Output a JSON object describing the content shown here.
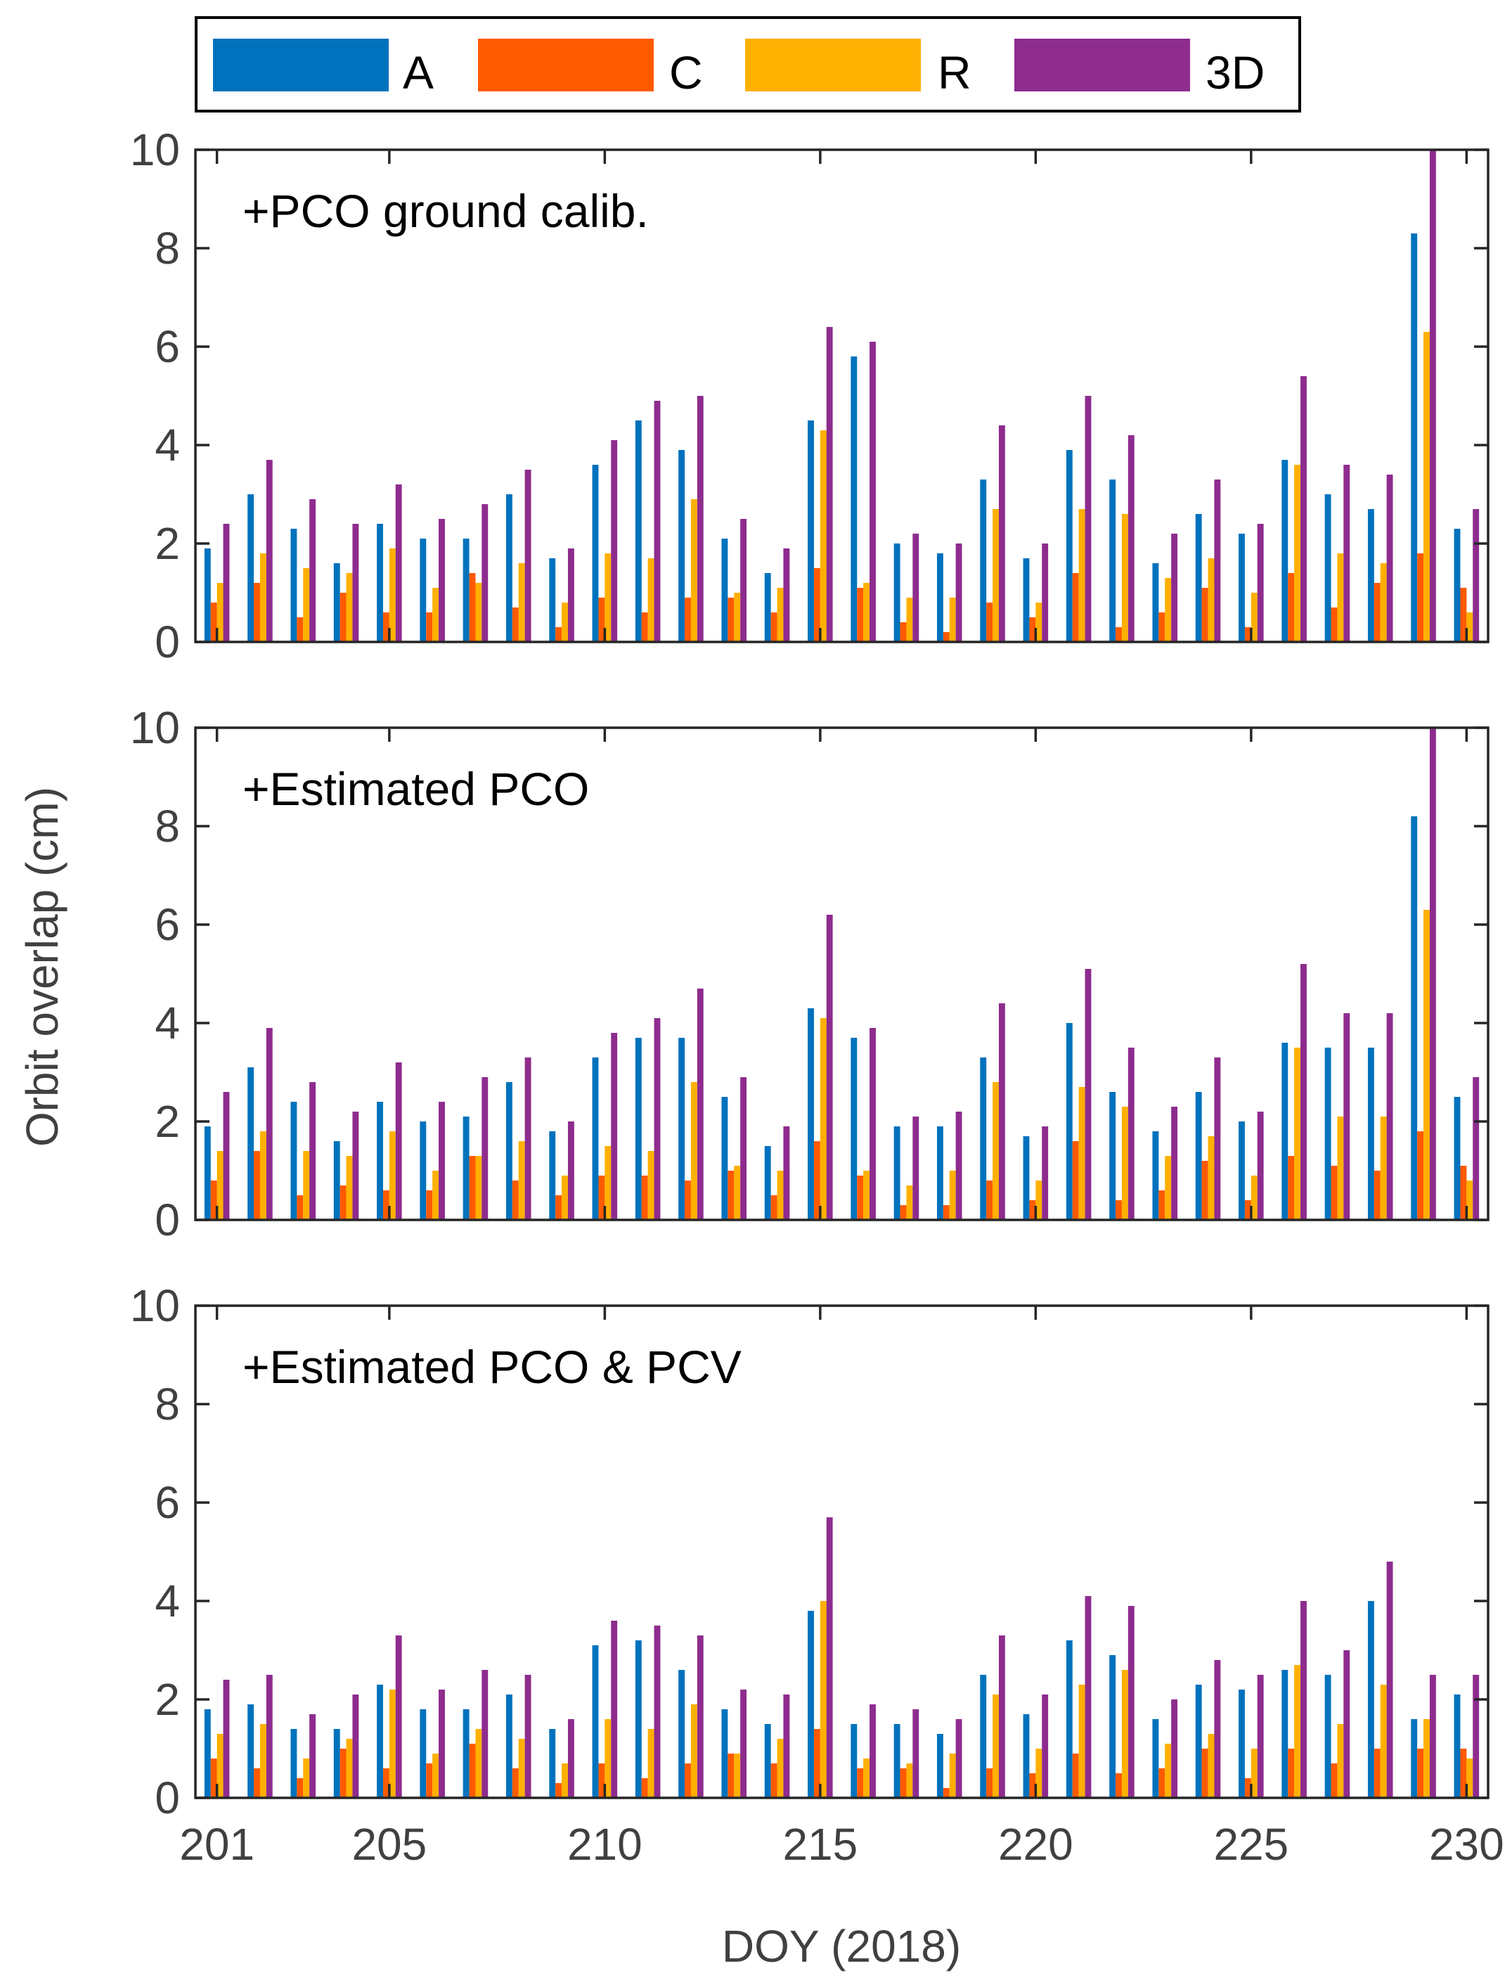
{
  "chart_data": {
    "type": "bar",
    "ylabel": "Orbit overlap (cm)",
    "xlabel": "DOY (2018)",
    "ylim": [
      0,
      10
    ],
    "yticks": [
      "0",
      "2",
      "4",
      "6",
      "8",
      "10"
    ],
    "xlim": [
      200.5,
      230.5
    ],
    "xticks": [
      {
        "value": 201,
        "label": "201"
      },
      {
        "value": 205,
        "label": "205"
      },
      {
        "value": 210,
        "label": "210"
      },
      {
        "value": 215,
        "label": "215"
      },
      {
        "value": 220,
        "label": "220"
      },
      {
        "value": 225,
        "label": "225"
      },
      {
        "value": 230,
        "label": "230"
      }
    ],
    "legend": {
      "placement": "top",
      "entries": [
        {
          "name": "A",
          "color": "#0072BD"
        },
        {
          "name": "C",
          "color": "#FF5A00"
        },
        {
          "name": "R",
          "color": "#FFB000"
        },
        {
          "name": "3D",
          "color": "#8E2C8E"
        }
      ]
    },
    "categories": [
      201,
      202,
      203,
      204,
      205,
      206,
      207,
      208,
      209,
      210,
      211,
      212,
      213,
      214,
      215,
      216,
      217,
      218,
      219,
      220,
      221,
      222,
      223,
      224,
      225,
      226,
      227,
      228,
      229,
      230
    ],
    "panels": [
      {
        "title": "+PCO ground calib.",
        "series": [
          {
            "name": "A",
            "values": [
              1.9,
              3.0,
              2.3,
              1.6,
              2.4,
              2.1,
              2.1,
              3.0,
              1.7,
              3.6,
              4.5,
              3.9,
              2.1,
              1.4,
              4.5,
              5.8,
              2.0,
              1.8,
              3.3,
              1.7,
              3.9,
              3.3,
              1.6,
              2.6,
              2.2,
              3.7,
              3.0,
              2.7,
              8.3,
              2.3
            ]
          },
          {
            "name": "C",
            "values": [
              0.8,
              1.2,
              0.5,
              1.0,
              0.6,
              0.6,
              1.4,
              0.7,
              0.3,
              0.9,
              0.6,
              0.9,
              0.9,
              0.6,
              1.5,
              1.1,
              0.4,
              0.2,
              0.8,
              0.5,
              1.4,
              0.3,
              0.6,
              1.1,
              0.3,
              1.4,
              0.7,
              1.2,
              1.8,
              1.1
            ]
          },
          {
            "name": "R",
            "values": [
              1.2,
              1.8,
              1.5,
              1.4,
              1.9,
              1.1,
              1.2,
              1.6,
              0.8,
              1.8,
              1.7,
              2.9,
              1.0,
              1.1,
              4.3,
              1.2,
              0.9,
              0.9,
              2.7,
              0.8,
              2.7,
              2.6,
              1.3,
              1.7,
              1.0,
              3.6,
              1.8,
              1.6,
              6.3,
              0.6
            ]
          },
          {
            "name": "3D",
            "values": [
              2.4,
              3.7,
              2.9,
              2.4,
              3.2,
              2.5,
              2.8,
              3.5,
              1.9,
              4.1,
              4.9,
              5.0,
              2.5,
              1.9,
              6.4,
              6.1,
              2.2,
              2.0,
              4.4,
              2.0,
              5.0,
              4.2,
              2.2,
              3.3,
              2.4,
              5.4,
              3.6,
              3.4,
              10.0,
              2.7
            ]
          }
        ]
      },
      {
        "title": "+Estimated PCO",
        "series": [
          {
            "name": "A",
            "values": [
              1.9,
              3.1,
              2.4,
              1.6,
              2.4,
              2.0,
              2.1,
              2.8,
              1.8,
              3.3,
              3.7,
              3.7,
              2.5,
              1.5,
              4.3,
              3.7,
              1.9,
              1.9,
              3.3,
              1.7,
              4.0,
              2.6,
              1.8,
              2.6,
              2.0,
              3.6,
              3.5,
              3.5,
              8.2,
              2.5
            ]
          },
          {
            "name": "C",
            "values": [
              0.8,
              1.4,
              0.5,
              0.7,
              0.6,
              0.6,
              1.3,
              0.8,
              0.5,
              0.9,
              0.9,
              0.8,
              1.0,
              0.5,
              1.6,
              0.9,
              0.3,
              0.3,
              0.8,
              0.4,
              1.6,
              0.4,
              0.6,
              1.2,
              0.4,
              1.3,
              1.1,
              1.0,
              1.8,
              1.1
            ]
          },
          {
            "name": "R",
            "values": [
              1.4,
              1.8,
              1.4,
              1.3,
              1.8,
              1.0,
              1.3,
              1.6,
              0.9,
              1.5,
              1.4,
              2.8,
              1.1,
              1.0,
              4.1,
              1.0,
              0.7,
              1.0,
              2.8,
              0.8,
              2.7,
              2.3,
              1.3,
              1.7,
              0.9,
              3.5,
              2.1,
              2.1,
              6.3,
              0.8
            ]
          },
          {
            "name": "3D",
            "values": [
              2.6,
              3.9,
              2.8,
              2.2,
              3.2,
              2.4,
              2.9,
              3.3,
              2.0,
              3.8,
              4.1,
              4.7,
              2.9,
              1.9,
              6.2,
              3.9,
              2.1,
              2.2,
              4.4,
              1.9,
              5.1,
              3.5,
              2.3,
              3.3,
              2.2,
              5.2,
              4.2,
              4.2,
              10.0,
              2.9
            ]
          }
        ]
      },
      {
        "title": "+Estimated PCO & PCV",
        "series": [
          {
            "name": "A",
            "values": [
              1.8,
              1.9,
              1.4,
              1.4,
              2.3,
              1.8,
              1.8,
              2.1,
              1.4,
              3.1,
              3.2,
              2.6,
              1.8,
              1.5,
              3.8,
              1.5,
              1.5,
              1.3,
              2.5,
              1.7,
              3.2,
              2.9,
              1.6,
              2.3,
              2.2,
              2.6,
              2.5,
              4.0,
              1.6,
              2.1
            ]
          },
          {
            "name": "C",
            "values": [
              0.8,
              0.6,
              0.4,
              1.0,
              0.6,
              0.7,
              1.1,
              0.6,
              0.3,
              0.7,
              0.4,
              0.7,
              0.9,
              0.7,
              1.4,
              0.6,
              0.6,
              0.2,
              0.6,
              0.5,
              0.9,
              0.5,
              0.6,
              1.0,
              0.4,
              1.0,
              0.7,
              1.0,
              1.0,
              1.0
            ]
          },
          {
            "name": "R",
            "values": [
              1.3,
              1.5,
              0.8,
              1.2,
              2.2,
              0.9,
              1.4,
              1.2,
              0.7,
              1.6,
              1.4,
              1.9,
              0.9,
              1.2,
              4.0,
              0.8,
              0.7,
              0.9,
              2.1,
              1.0,
              2.3,
              2.6,
              1.1,
              1.3,
              1.0,
              2.7,
              1.5,
              2.3,
              1.6,
              0.8
            ]
          },
          {
            "name": "3D",
            "values": [
              2.4,
              2.5,
              1.7,
              2.1,
              3.3,
              2.2,
              2.6,
              2.5,
              1.6,
              3.6,
              3.5,
              3.3,
              2.2,
              2.1,
              5.7,
              1.9,
              1.8,
              1.6,
              3.3,
              2.1,
              4.1,
              3.9,
              2.0,
              2.8,
              2.5,
              4.0,
              3.0,
              4.8,
              2.5,
              2.5
            ]
          }
        ]
      }
    ]
  }
}
